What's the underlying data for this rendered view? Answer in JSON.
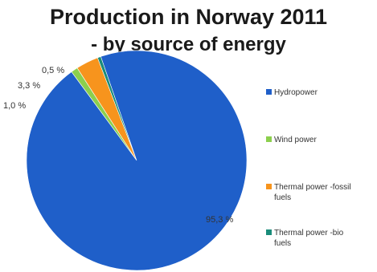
{
  "chart_data": {
    "type": "pie",
    "title": "Production in Norway 2011",
    "subtitle": "- by source of energy",
    "slices": [
      {
        "name": "Hydropower",
        "value": 95.3,
        "label": "95,3 %",
        "color": "#1f5fc9"
      },
      {
        "name": "Wind power",
        "value": 1.0,
        "label": "1,0 %",
        "color": "#8ccf4d"
      },
      {
        "name": "Thermal power -fossil fuels",
        "value": 3.3,
        "label": "3,3 %",
        "color": "#f7941d"
      },
      {
        "name": "Thermal power -bio fuels",
        "value": 0.5,
        "label": "0,5 %",
        "color": "#1a8c7a"
      }
    ],
    "legend": {
      "position": "right",
      "entries": [
        {
          "lines": [
            "Hydropower"
          ],
          "color": "#1f5fc9"
        },
        {
          "lines": [
            "Wind power"
          ],
          "color": "#8ccf4d"
        },
        {
          "lines": [
            "Thermal power -fossil",
            "fuels"
          ],
          "color": "#f7941d"
        },
        {
          "lines": [
            "Thermal power -bio",
            "fuels"
          ],
          "color": "#1a8c7a"
        }
      ]
    }
  }
}
